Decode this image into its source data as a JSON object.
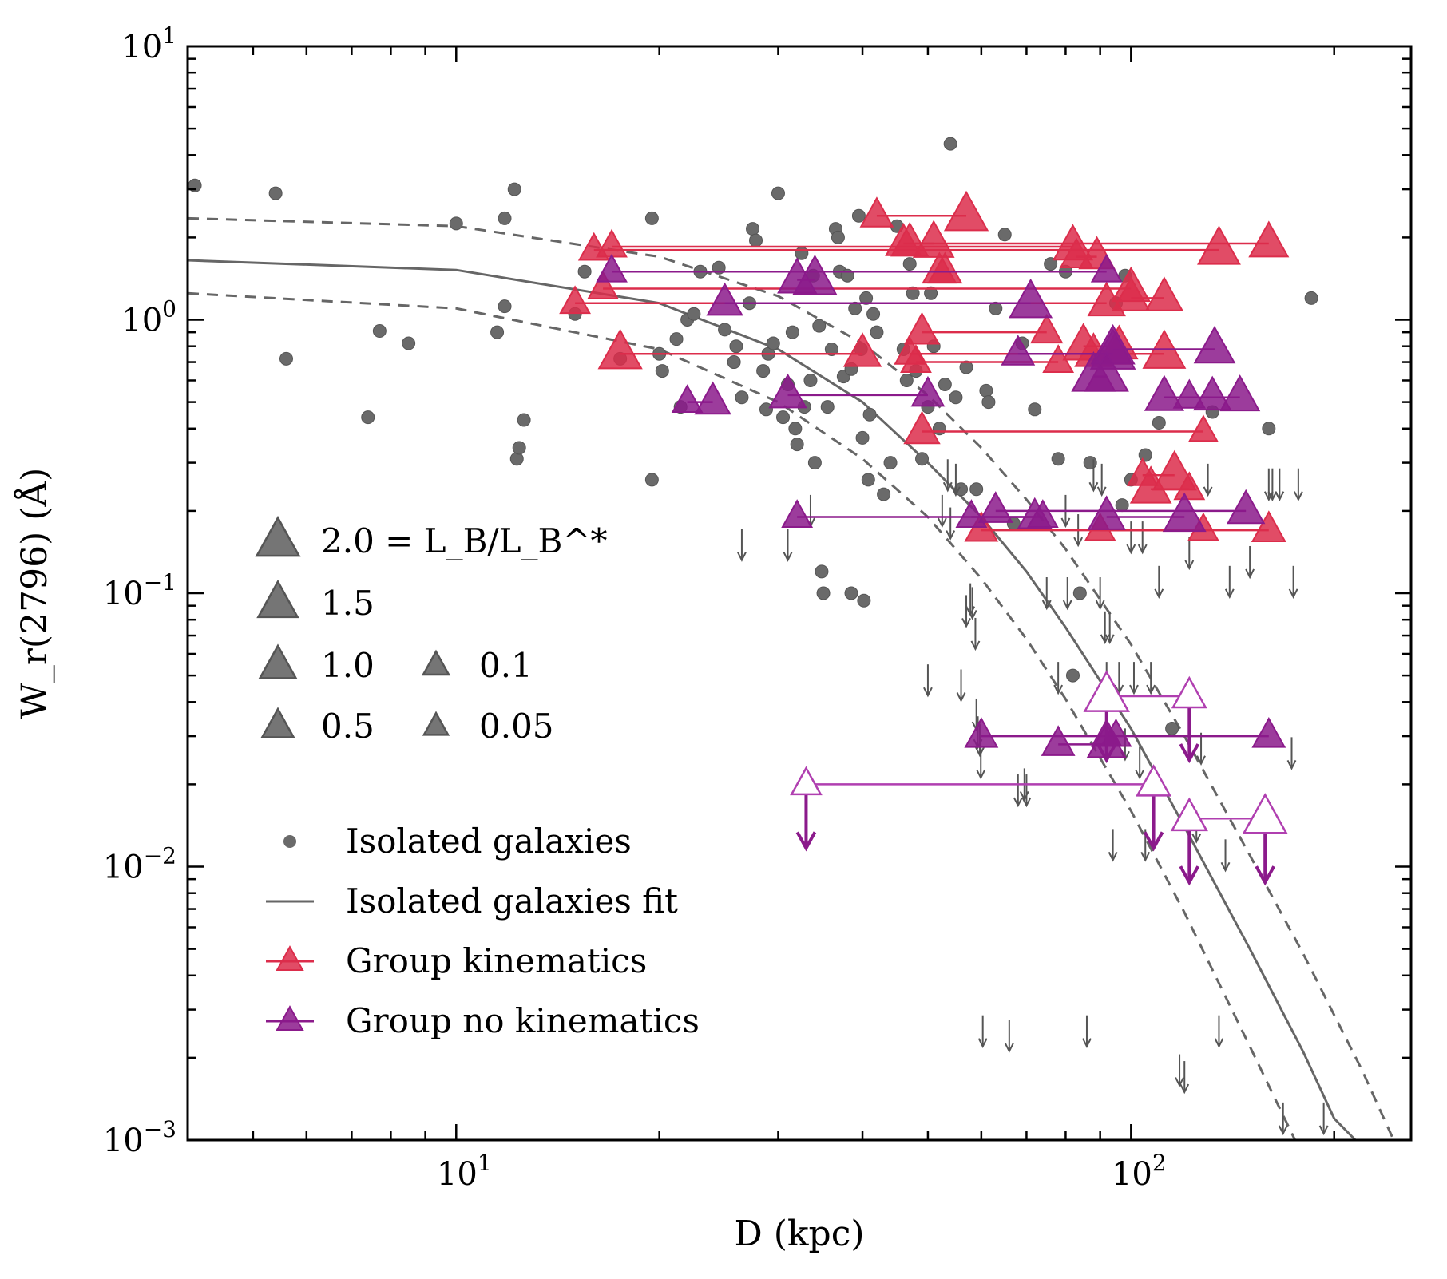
{
  "chart_data": {
    "type": "scatter",
    "xlabel": "D (kpc)",
    "ylabel": "W_r(2796) (Å)",
    "xscale": "log",
    "yscale": "log",
    "xlim": [
      4,
      260
    ],
    "ylim": [
      0.001,
      10
    ],
    "x_tick_labels": [
      {
        "base": "10",
        "exp": "1",
        "value": 10
      },
      {
        "base": "10",
        "exp": "2",
        "value": 100
      }
    ],
    "y_tick_labels": [
      {
        "base": "10",
        "exp": "−3",
        "value": 0.001
      },
      {
        "base": "10",
        "exp": "−2",
        "value": 0.01
      },
      {
        "base": "10",
        "exp": "−1",
        "value": 0.1
      },
      {
        "base": "10",
        "exp": "0",
        "value": 1
      },
      {
        "base": "10",
        "exp": "1",
        "value": 10
      }
    ],
    "size_legend": {
      "quantity": "L_B/L_B^*",
      "entries": [
        {
          "value": 2.0,
          "label": "2.0 = L_B/L_B^*"
        },
        {
          "value": 1.5,
          "label": "1.5"
        },
        {
          "value": 1.0,
          "label": "1.0"
        },
        {
          "value": 0.5,
          "label": "0.5"
        },
        {
          "value": 0.1,
          "label": "0.1"
        },
        {
          "value": 0.05,
          "label": "0.05"
        }
      ]
    },
    "legend": {
      "placement": "lower-left",
      "entries": [
        {
          "label": "Isolated galaxies",
          "marker": "circle",
          "color": "#6a6a6a"
        },
        {
          "label": "Isolated galaxies fit",
          "marker": "line",
          "color": "#666666"
        },
        {
          "label": "Group kinematics",
          "marker": "triangle-line",
          "color": "#dc2d4b"
        },
        {
          "label": "Group no kinematics",
          "marker": "triangle-line",
          "color": "#8b1a8b"
        }
      ]
    },
    "colors": {
      "isolated": "#6a6a6a",
      "fit": "#666666",
      "group_kinematics": "#dc2d4b",
      "group_no_kinematics": "#8b1a8b"
    },
    "fit": {
      "description": "Isolated galaxies fit",
      "curve": [
        [
          4,
          1.65
        ],
        [
          10,
          1.52
        ],
        [
          20,
          1.15
        ],
        [
          30,
          0.78
        ],
        [
          40,
          0.5
        ],
        [
          50,
          0.3
        ],
        [
          60,
          0.19
        ],
        [
          70,
          0.12
        ],
        [
          80,
          0.075
        ],
        [
          100,
          0.032
        ],
        [
          120,
          0.014
        ],
        [
          150,
          0.005
        ],
        [
          180,
          0.0021
        ],
        [
          200,
          0.0012
        ],
        [
          215,
          0.001
        ]
      ],
      "upper": [
        [
          4,
          2.35
        ],
        [
          10,
          2.2
        ],
        [
          20,
          1.7
        ],
        [
          30,
          1.22
        ],
        [
          40,
          0.82
        ],
        [
          50,
          0.53
        ],
        [
          60,
          0.34
        ],
        [
          70,
          0.22
        ],
        [
          80,
          0.145
        ],
        [
          100,
          0.065
        ],
        [
          120,
          0.03
        ],
        [
          150,
          0.011
        ],
        [
          180,
          0.0048
        ],
        [
          220,
          0.0018
        ],
        [
          245,
          0.001
        ]
      ],
      "lower": [
        [
          4,
          1.25
        ],
        [
          10,
          1.1
        ],
        [
          20,
          0.78
        ],
        [
          30,
          0.5
        ],
        [
          40,
          0.31
        ],
        [
          50,
          0.19
        ],
        [
          60,
          0.113
        ],
        [
          70,
          0.068
        ],
        [
          80,
          0.041
        ],
        [
          100,
          0.016
        ],
        [
          120,
          0.0068
        ],
        [
          150,
          0.0022
        ],
        [
          175,
          0.001
        ]
      ]
    },
    "isolated_detections": [
      [
        4.1,
        3.1
      ],
      [
        5.4,
        2.9
      ],
      [
        5.6,
        0.72
      ],
      [
        7.4,
        0.44
      ],
      [
        7.7,
        0.91
      ],
      [
        8.5,
        0.82
      ],
      [
        10,
        2.25
      ],
      [
        11.5,
        0.9
      ],
      [
        11.8,
        2.35
      ],
      [
        11.8,
        1.12
      ],
      [
        12.2,
        3.0
      ],
      [
        12.3,
        0.31
      ],
      [
        12.4,
        0.34
      ],
      [
        12.6,
        0.43
      ],
      [
        15.0,
        1.05
      ],
      [
        15.5,
        1.5
      ],
      [
        17.5,
        0.72
      ],
      [
        19.5,
        0.26
      ],
      [
        19.5,
        2.35
      ],
      [
        20.0,
        0.75
      ],
      [
        20.2,
        0.65
      ],
      [
        21.2,
        0.85
      ],
      [
        21.5,
        0.48
      ],
      [
        22.0,
        1.0
      ],
      [
        22.5,
        1.05
      ],
      [
        23.0,
        1.5
      ],
      [
        24.5,
        1.55
      ],
      [
        25.0,
        0.92
      ],
      [
        25.8,
        0.7
      ],
      [
        26.0,
        0.8
      ],
      [
        26.5,
        0.52
      ],
      [
        27.2,
        1.15
      ],
      [
        27.5,
        2.15
      ],
      [
        27.8,
        1.95
      ],
      [
        28.5,
        0.65
      ],
      [
        28.8,
        0.47
      ],
      [
        29.0,
        0.75
      ],
      [
        29.5,
        0.82
      ],
      [
        30.0,
        2.9
      ],
      [
        30.5,
        0.44
      ],
      [
        31.0,
        0.58
      ],
      [
        31.5,
        0.9
      ],
      [
        31.8,
        0.4
      ],
      [
        32.0,
        0.35
      ],
      [
        32.5,
        1.75
      ],
      [
        32.8,
        0.48
      ],
      [
        33.5,
        0.6
      ],
      [
        33.8,
        1.45
      ],
      [
        34.0,
        0.3
      ],
      [
        34.5,
        0.95
      ],
      [
        34.8,
        0.12
      ],
      [
        35.0,
        0.1
      ],
      [
        35.5,
        0.48
      ],
      [
        36.0,
        0.78
      ],
      [
        36.5,
        2.15
      ],
      [
        36.8,
        2.0
      ],
      [
        37.0,
        1.5
      ],
      [
        37.5,
        0.62
      ],
      [
        38.0,
        1.45
      ],
      [
        38.5,
        0.66
      ],
      [
        38.5,
        0.1
      ],
      [
        39.0,
        1.1
      ],
      [
        39.5,
        2.4
      ],
      [
        39.8,
        0.78
      ],
      [
        40.0,
        0.37
      ],
      [
        40.2,
        0.094
      ],
      [
        40.5,
        1.2
      ],
      [
        40.8,
        0.26
      ],
      [
        41.0,
        0.45
      ],
      [
        41.5,
        1.05
      ],
      [
        42.0,
        0.9
      ],
      [
        43.0,
        0.23
      ],
      [
        44.0,
        0.3
      ],
      [
        45.0,
        2.2
      ],
      [
        46.0,
        0.78
      ],
      [
        46.5,
        0.6
      ],
      [
        47.0,
        1.6
      ],
      [
        47.5,
        1.25
      ],
      [
        48.0,
        0.65
      ],
      [
        49.0,
        0.31
      ],
      [
        50.0,
        0.48
      ],
      [
        50.5,
        1.25
      ],
      [
        51.0,
        0.8
      ],
      [
        52.0,
        0.4
      ],
      [
        53.0,
        0.58
      ],
      [
        54.0,
        4.4
      ],
      [
        55.0,
        0.52
      ],
      [
        56.0,
        0.24
      ],
      [
        57.0,
        0.67
      ],
      [
        59.0,
        0.24
      ],
      [
        61.0,
        0.55
      ],
      [
        61.5,
        0.5
      ],
      [
        63.0,
        1.1
      ],
      [
        65.0,
        2.05
      ],
      [
        67.0,
        0.18
      ],
      [
        69.0,
        0.82
      ],
      [
        72.0,
        0.47
      ],
      [
        76.0,
        1.6
      ],
      [
        78.0,
        0.31
      ],
      [
        80.0,
        1.5
      ],
      [
        82.0,
        0.05
      ],
      [
        84.0,
        0.1
      ],
      [
        87.0,
        0.3
      ],
      [
        95.0,
        1.15
      ],
      [
        97.0,
        0.21
      ],
      [
        98.0,
        1.45
      ],
      [
        100.0,
        0.26
      ],
      [
        105.0,
        0.32
      ],
      [
        110.0,
        0.42
      ],
      [
        115.0,
        0.032
      ],
      [
        132.0,
        0.46
      ],
      [
        160.0,
        0.4
      ],
      [
        185.0,
        1.2
      ]
    ],
    "isolated_upper_limits": [
      [
        26.5,
        0.15
      ],
      [
        31.0,
        0.15
      ],
      [
        33.5,
        0.2
      ],
      [
        50.0,
        0.048
      ],
      [
        52.5,
        0.2
      ],
      [
        53.5,
        0.27
      ],
      [
        54.0,
        0.18
      ],
      [
        55.0,
        0.26
      ],
      [
        56.0,
        0.046
      ],
      [
        57.0,
        0.086
      ],
      [
        57.8,
        0.095
      ],
      [
        58.2,
        0.092
      ],
      [
        58.8,
        0.071
      ],
      [
        59.0,
        0.036
      ],
      [
        59.3,
        0.031
      ],
      [
        59.7,
        0.029
      ],
      [
        59.9,
        0.024
      ],
      [
        60.3,
        0.0025
      ],
      [
        66.0,
        0.0024
      ],
      [
        68.0,
        0.019
      ],
      [
        69.5,
        0.02
      ],
      [
        70.0,
        0.019
      ],
      [
        75.0,
        0.1
      ],
      [
        78.0,
        0.049
      ],
      [
        80.0,
        0.2
      ],
      [
        80.5,
        0.1
      ],
      [
        83.5,
        0.17
      ],
      [
        86.0,
        0.0025
      ],
      [
        88.0,
        0.27
      ],
      [
        90.0,
        0.1
      ],
      [
        90.5,
        0.26
      ],
      [
        91.5,
        0.075
      ],
      [
        92.0,
        0.049
      ],
      [
        93.0,
        0.075
      ],
      [
        94.0,
        0.012
      ],
      [
        96.0,
        0.049
      ],
      [
        98.0,
        0.028
      ],
      [
        100.0,
        0.16
      ],
      [
        101.0,
        0.049
      ],
      [
        103.0,
        0.024
      ],
      [
        104.0,
        0.16
      ],
      [
        105.0,
        0.012
      ],
      [
        107.0,
        0.049
      ],
      [
        110.0,
        0.11
      ],
      [
        118.0,
        0.0018
      ],
      [
        120.0,
        0.0017
      ],
      [
        122.0,
        0.14
      ],
      [
        125.0,
        0.014
      ],
      [
        127.0,
        0.027
      ],
      [
        130.0,
        0.26
      ],
      [
        135.0,
        0.0025
      ],
      [
        138.0,
        0.011
      ],
      [
        140.0,
        0.11
      ],
      [
        150.0,
        0.13
      ],
      [
        160.0,
        0.25
      ],
      [
        162.0,
        0.25
      ],
      [
        166.0,
        0.25
      ],
      [
        168.0,
        0.0012
      ],
      [
        173.0,
        0.026
      ],
      [
        174.0,
        0.11
      ],
      [
        177.0,
        0.25
      ],
      [
        193.0,
        0.0012
      ]
    ],
    "group_kinematics": [
      {
        "d": [
          17,
          82
        ],
        "w": 1.85,
        "lum": [
          0.3,
          1.3
        ]
      },
      {
        "d": [
          16,
          135
        ],
        "w": 1.8,
        "lum": [
          0.3,
          1.8
        ]
      },
      {
        "d": [
          16.5,
          100
        ],
        "w": 1.3,
        "lum": [
          0.3,
          1.1
        ]
      },
      {
        "d": [
          15,
          92
        ],
        "w": 1.15,
        "lum": [
          0.3,
          1.0
        ]
      },
      {
        "d": [
          17.5,
          40
        ],
        "w": 0.75,
        "lum": [
          2.0,
          1.0
        ]
      },
      {
        "d": [
          42,
          57
        ],
        "w": 2.4,
        "lum": [
          0.5,
          2.0
        ]
      },
      {
        "d": [
          47,
          51
        ],
        "w": 1.9,
        "lum": [
          1.0,
          1.5
        ]
      },
      {
        "d": [
          46,
          160
        ],
        "w": 1.9,
        "lum": [
          0.8,
          1.3
        ]
      },
      {
        "d": [
          49,
          75
        ],
        "w": 0.9,
        "lum": [
          0.7,
          0.4
        ]
      },
      {
        "d": [
          47,
          95
        ],
        "w": 0.75,
        "lum": [
          0.3,
          0.3
        ]
      },
      {
        "d": [
          48,
          78
        ],
        "w": 0.7,
        "lum": [
          0.3,
          0.3
        ]
      },
      {
        "d": [
          49,
          128
        ],
        "w": 0.39,
        "lum": [
          0.8,
          0.2
        ]
      },
      {
        "d": [
          60,
          160
        ],
        "w": 0.17,
        "lum": [
          0.5,
          0.6
        ]
      },
      {
        "d": [
          83,
          89
        ],
        "w": 1.7,
        "lum": [
          0.5,
          0.8
        ]
      },
      {
        "d": [
          85,
          96
        ],
        "w": 0.8,
        "lum": [
          1.5,
          1.0
        ]
      },
      {
        "d": [
          88,
          112
        ],
        "w": 0.75,
        "lum": [
          1.0,
          1.8
        ]
      },
      {
        "d": [
          104,
          116
        ],
        "w": 0.27,
        "lum": [
          0.3,
          2.0
        ]
      },
      {
        "d": [
          107,
          122
        ],
        "w": 0.24,
        "lum": [
          1.5,
          0.3
        ]
      },
      {
        "d": [
          90,
          128
        ],
        "w": 0.17,
        "lum": [
          0.3,
          0.3
        ]
      },
      {
        "d": [
          100,
          112
        ],
        "w": 1.2,
        "lum": [
          1.0,
          1.0
        ]
      },
      {
        "d": [
          52,
          53
        ],
        "w": 1.5,
        "lum": [
          0.6,
          0.6
        ]
      }
    ],
    "group_no_kinematics": [
      {
        "d": [
          17,
          92
        ],
        "w": 1.5,
        "lum": [
          0.3,
          0.3
        ]
      },
      {
        "d": [
          25,
          71
        ],
        "w": 1.15,
        "lum": [
          0.8,
          1.8
        ]
      },
      {
        "d": [
          32,
          34
        ],
        "w": 1.4,
        "lum": [
          1.2,
          2.0
        ]
      },
      {
        "d": [
          22,
          24
        ],
        "w": 0.5,
        "lum": [
          0.3,
          0.8
        ]
      },
      {
        "d": [
          31,
          50
        ],
        "w": 0.53,
        "lum": [
          1.0,
          0.5
        ]
      },
      {
        "d": [
          32,
          74
        ],
        "w": 0.19,
        "lum": [
          0.3,
          0.3
        ]
      },
      {
        "d": [
          63,
          148
        ],
        "w": 0.2,
        "lum": [
          0.6,
          1.0
        ]
      },
      {
        "d": [
          58,
          72
        ],
        "w": 0.19,
        "lum": [
          0.3,
          0.6
        ]
      },
      {
        "d": [
          92,
          120
        ],
        "w": 0.19,
        "lum": [
          1.0,
          1.8
        ]
      },
      {
        "d": [
          68,
          94
        ],
        "w": 0.75,
        "lum": [
          0.5,
          2.2
        ]
      },
      {
        "d": [
          94,
          133
        ],
        "w": 0.78,
        "lum": [
          2.0,
          1.5
        ]
      },
      {
        "d": [
          88,
          92
        ],
        "w": 0.62,
        "lum": [
          2.0,
          2.0
        ]
      },
      {
        "d": [
          112,
          132
        ],
        "w": 0.52,
        "lum": [
          1.2,
          1.0
        ]
      },
      {
        "d": [
          122,
          145
        ],
        "w": 0.52,
        "lum": [
          0.4,
          1.3
        ]
      },
      {
        "d": [
          60,
          95
        ],
        "w": 0.03,
        "lum": [
          0.5,
          0.3
        ]
      },
      {
        "d": [
          78,
          92
        ],
        "w": 0.028,
        "lum": [
          0.5,
          1.2
        ]
      },
      {
        "d": [
          92,
          160
        ],
        "w": 0.03,
        "lum": [
          0.3,
          0.5
        ]
      }
    ],
    "group_upper_limits": [
      {
        "d": [
          33,
          108
        ],
        "w": 0.02,
        "lum": [
          0.3,
          0.6
        ]
      },
      {
        "d": [
          92,
          122
        ],
        "w": 0.042,
        "lum": [
          2.2,
          0.6
        ]
      },
      {
        "d": [
          122,
          158
        ],
        "w": 0.015,
        "lum": [
          0.8,
          2.0
        ]
      }
    ]
  }
}
